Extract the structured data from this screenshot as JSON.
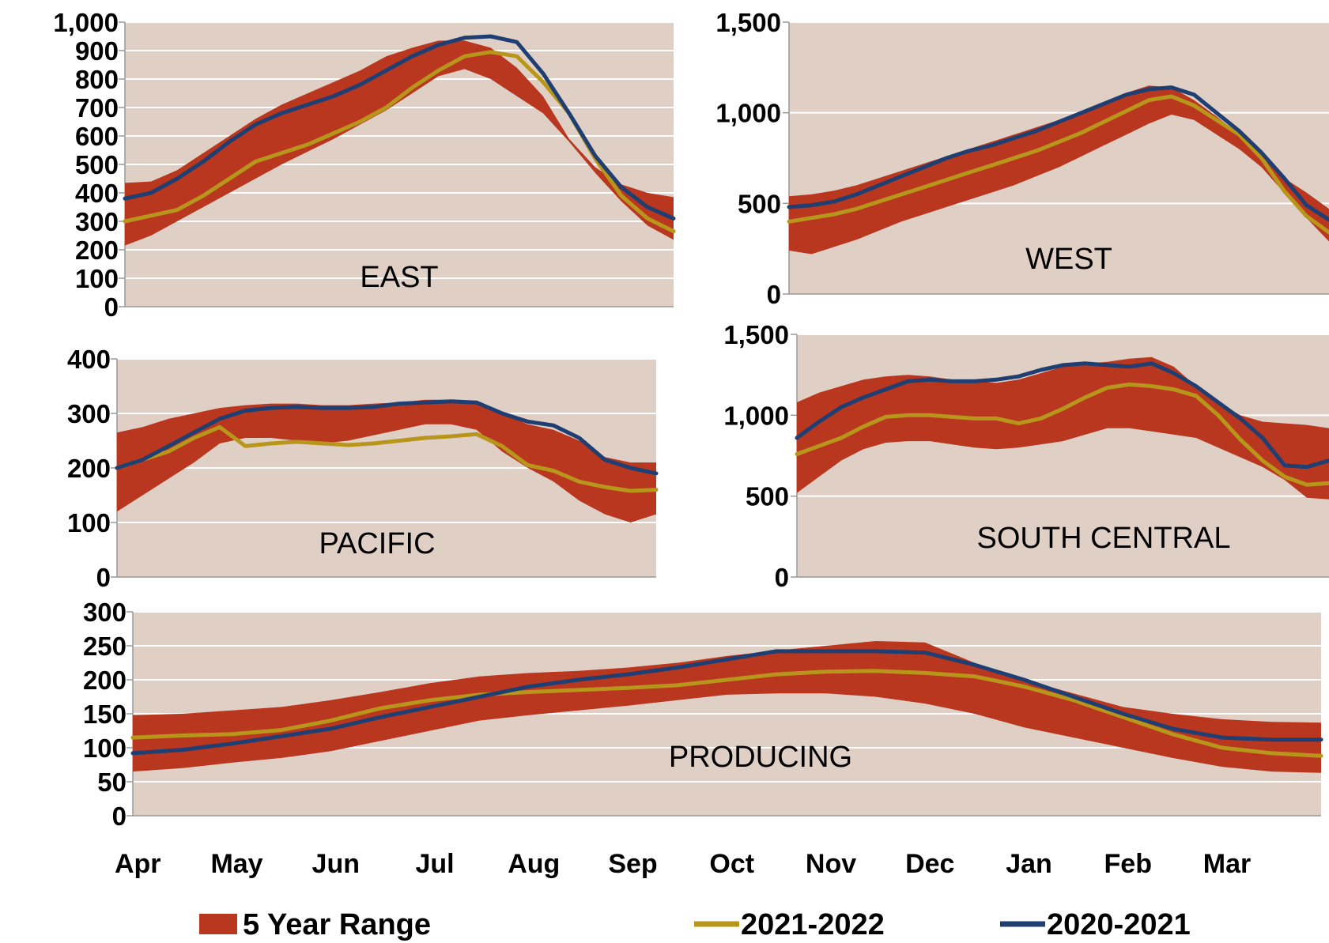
{
  "colors": {
    "plot_bg": "#e0cfc5",
    "range_fill": "#b9361f",
    "series_2021_2022": "#b8961b",
    "series_2020_2021": "#1f3f73",
    "gridline": "#ffffff",
    "axis": "#999999"
  },
  "legend": {
    "placement": "bottom",
    "range_label": "5 Year Range",
    "series1_label": "2021-2022",
    "series2_label": "2020-2021"
  },
  "chart_data": [
    {
      "type": "area",
      "title": "EAST",
      "x_range": [
        "Apr",
        "Sep"
      ],
      "ylim": [
        0,
        1000
      ],
      "y_ticks": [
        "0",
        "100",
        "200",
        "300",
        "400",
        "500",
        "600",
        "700",
        "800",
        "900",
        "1,000"
      ],
      "grid": true,
      "x": [
        0,
        0.25,
        0.5,
        0.75,
        1,
        1.25,
        1.5,
        1.75,
        2,
        2.25,
        2.5,
        2.75,
        3,
        3.25,
        3.5,
        3.75,
        4,
        4.25,
        4.5,
        4.75,
        5,
        5.25
      ],
      "series": [
        {
          "name": "5 Year Range",
          "low": [
            215,
            250,
            300,
            350,
            400,
            450,
            500,
            545,
            590,
            640,
            690,
            750,
            810,
            835,
            800,
            740,
            680,
            580,
            470,
            370,
            285,
            235
          ],
          "high": [
            435,
            440,
            480,
            540,
            600,
            660,
            710,
            750,
            790,
            830,
            880,
            910,
            935,
            935,
            910,
            840,
            740,
            590,
            490,
            430,
            400,
            385
          ]
        },
        {
          "name": "2021-2022",
          "values": [
            300,
            320,
            340,
            390,
            450,
            510,
            540,
            570,
            610,
            650,
            700,
            770,
            830,
            880,
            895,
            880,
            790,
            680,
            520,
            390,
            310,
            265
          ]
        },
        {
          "name": "2020-2021",
          "values": [
            380,
            400,
            450,
            510,
            580,
            640,
            680,
            710,
            740,
            780,
            830,
            880,
            920,
            945,
            950,
            930,
            820,
            680,
            530,
            420,
            350,
            310
          ]
        }
      ]
    },
    {
      "type": "area",
      "title": "WEST",
      "x_range": [
        "Apr",
        "Mar"
      ],
      "ylim": [
        0,
        1500
      ],
      "y_ticks": [
        "0",
        "500",
        "1,000",
        "1,500"
      ],
      "grid": true,
      "x": [
        0,
        0.5,
        1,
        1.5,
        2,
        2.5,
        3,
        3.5,
        4,
        4.5,
        5,
        5.5,
        6,
        6.5,
        7,
        7.5,
        8,
        8.5,
        9,
        9.5,
        10,
        10.5,
        11,
        11.5,
        12
      ],
      "series": [
        {
          "name": "5 Year Range",
          "low": [
            240,
            220,
            260,
            300,
            350,
            400,
            440,
            480,
            520,
            560,
            600,
            650,
            700,
            760,
            820,
            880,
            940,
            990,
            960,
            880,
            800,
            700,
            560,
            420,
            290
          ],
          "high": [
            540,
            550,
            570,
            600,
            640,
            680,
            720,
            760,
            800,
            840,
            880,
            920,
            960,
            1010,
            1060,
            1110,
            1150,
            1140,
            1070,
            980,
            880,
            760,
            640,
            560,
            470
          ]
        },
        {
          "name": "2021-2022",
          "values": [
            400,
            420,
            440,
            470,
            510,
            550,
            590,
            630,
            670,
            710,
            750,
            790,
            840,
            890,
            950,
            1010,
            1070,
            1090,
            1040,
            960,
            880,
            750,
            570,
            430,
            340
          ]
        },
        {
          "name": "2020-2021",
          "values": [
            480,
            490,
            510,
            550,
            600,
            650,
            700,
            750,
            790,
            820,
            860,
            900,
            950,
            1000,
            1050,
            1100,
            1130,
            1140,
            1100,
            1000,
            900,
            780,
            640,
            490,
            410
          ]
        }
      ]
    },
    {
      "type": "area",
      "title": "PACIFIC",
      "x_range": [
        "Apr",
        "Sep"
      ],
      "ylim": [
        0,
        400
      ],
      "y_ticks": [
        "0",
        "100",
        "200",
        "300",
        "400"
      ],
      "grid": true,
      "x": [
        0,
        0.25,
        0.5,
        0.75,
        1,
        1.25,
        1.5,
        1.75,
        2,
        2.25,
        2.5,
        2.75,
        3,
        3.25,
        3.5,
        3.75,
        4,
        4.25,
        4.5,
        4.75,
        5,
        5.25
      ],
      "series": [
        {
          "name": "5 Year Range",
          "low": [
            120,
            150,
            180,
            210,
            245,
            255,
            255,
            250,
            245,
            250,
            260,
            270,
            280,
            280,
            270,
            230,
            200,
            175,
            140,
            115,
            100,
            115
          ],
          "high": [
            265,
            275,
            290,
            300,
            310,
            315,
            318,
            318,
            315,
            315,
            318,
            320,
            325,
            325,
            322,
            300,
            280,
            270,
            250,
            220,
            210,
            210
          ]
        },
        {
          "name": "2021-2022",
          "values": [
            200,
            215,
            230,
            255,
            275,
            240,
            245,
            248,
            245,
            242,
            245,
            250,
            255,
            258,
            262,
            240,
            205,
            195,
            175,
            165,
            158,
            160
          ]
        },
        {
          "name": "2020-2021",
          "values": [
            200,
            215,
            240,
            265,
            290,
            305,
            310,
            312,
            310,
            310,
            312,
            318,
            320,
            322,
            320,
            300,
            285,
            278,
            255,
            215,
            200,
            190
          ]
        }
      ]
    },
    {
      "type": "area",
      "title": "SOUTH CENTRAL",
      "x_range": [
        "Apr",
        "Mar"
      ],
      "ylim": [
        0,
        1500
      ],
      "y_ticks": [
        "0",
        "500",
        "1,000",
        "1,500"
      ],
      "grid": true,
      "x": [
        0,
        0.5,
        1,
        1.5,
        2,
        2.5,
        3,
        3.5,
        4,
        4.5,
        5,
        5.5,
        6,
        6.5,
        7,
        7.5,
        8,
        8.5,
        9,
        9.5,
        10,
        10.5,
        11,
        11.5,
        12
      ],
      "series": [
        {
          "name": "5 Year Range",
          "low": [
            520,
            620,
            720,
            790,
            830,
            840,
            840,
            820,
            800,
            790,
            800,
            820,
            840,
            880,
            920,
            920,
            900,
            880,
            860,
            800,
            740,
            680,
            600,
            490,
            480
          ],
          "high": [
            1080,
            1140,
            1180,
            1220,
            1240,
            1250,
            1240,
            1220,
            1210,
            1200,
            1220,
            1260,
            1300,
            1320,
            1330,
            1350,
            1360,
            1300,
            1180,
            1080,
            1000,
            960,
            950,
            940,
            920
          ]
        },
        {
          "name": "2021-2022",
          "values": [
            760,
            810,
            860,
            930,
            990,
            1000,
            1000,
            990,
            980,
            980,
            950,
            980,
            1040,
            1110,
            1170,
            1190,
            1180,
            1160,
            1120,
            1000,
            850,
            720,
            620,
            570,
            580
          ]
        },
        {
          "name": "2020-2021",
          "values": [
            860,
            960,
            1050,
            1110,
            1160,
            1210,
            1220,
            1210,
            1210,
            1220,
            1240,
            1280,
            1310,
            1320,
            1310,
            1300,
            1320,
            1260,
            1180,
            1080,
            980,
            860,
            690,
            680,
            720
          ]
        }
      ]
    },
    {
      "type": "area",
      "title": "PRODUCING",
      "x_range": [
        "Apr",
        "Mar"
      ],
      "ylim": [
        0,
        300
      ],
      "y_ticks": [
        "0",
        "50",
        "100",
        "150",
        "200",
        "250",
        "300"
      ],
      "grid": true,
      "x": [
        0,
        0.5,
        1,
        1.5,
        2,
        2.5,
        3,
        3.5,
        4,
        4.5,
        5,
        5.5,
        6,
        6.5,
        7,
        7.5,
        8,
        8.5,
        9,
        9.5,
        10,
        10.5,
        11,
        11.5,
        12
      ],
      "series": [
        {
          "name": "5 Year Range",
          "low": [
            65,
            70,
            78,
            85,
            95,
            110,
            125,
            140,
            148,
            155,
            162,
            170,
            178,
            180,
            180,
            175,
            165,
            150,
            130,
            115,
            100,
            85,
            72,
            65,
            63
          ],
          "high": [
            148,
            150,
            155,
            160,
            170,
            182,
            195,
            205,
            210,
            213,
            218,
            225,
            235,
            243,
            250,
            257,
            255,
            225,
            200,
            180,
            160,
            150,
            142,
            138,
            137
          ]
        },
        {
          "name": "2021-2022",
          "values": [
            115,
            118,
            120,
            126,
            140,
            158,
            170,
            178,
            182,
            185,
            188,
            192,
            200,
            208,
            212,
            213,
            210,
            205,
            190,
            170,
            145,
            120,
            100,
            92,
            88
          ]
        },
        {
          "name": "2020-2021",
          "values": [
            92,
            97,
            106,
            117,
            128,
            145,
            160,
            175,
            190,
            200,
            208,
            218,
            230,
            242,
            242,
            242,
            240,
            222,
            200,
            175,
            150,
            128,
            115,
            112,
            112
          ]
        }
      ]
    }
  ],
  "x_axis": {
    "tick_labels": [
      "Apr",
      "May",
      "Jun",
      "Jul",
      "Aug",
      "Sep",
      "Oct",
      "Nov",
      "Dec",
      "Jan",
      "Feb",
      "Mar"
    ]
  }
}
